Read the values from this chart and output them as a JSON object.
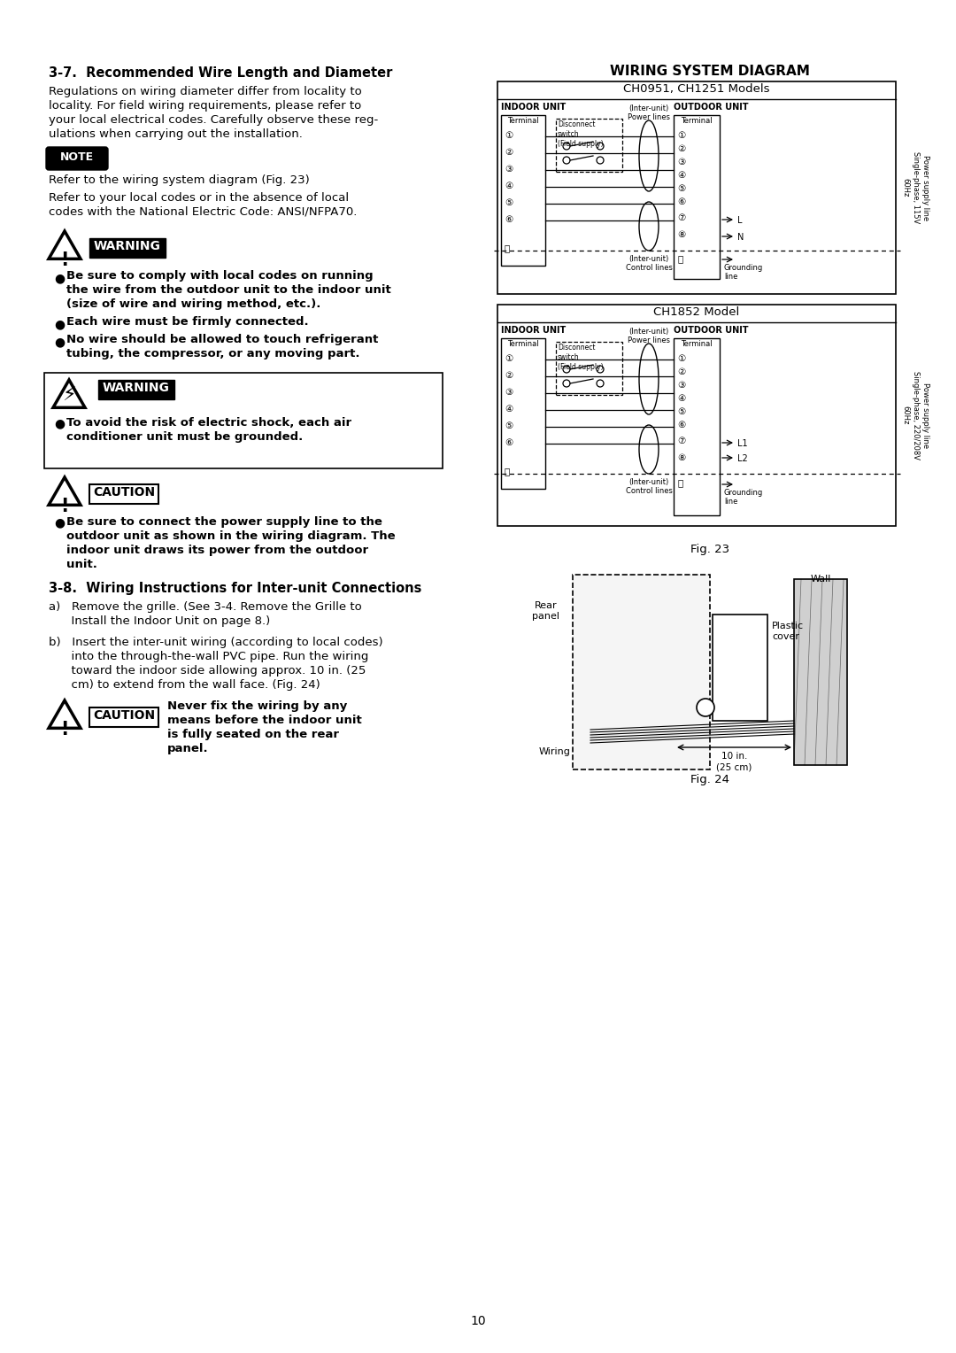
{
  "page_bg": "#ffffff",
  "page_number": "10",
  "left_col": {
    "section_title": "3-7.  Recommended Wire Length and Diameter",
    "para1_lines": [
      "Regulations on wiring diameter differ from locality to",
      "locality. For field wiring requirements, please refer to",
      "your local electrical codes. Carefully observe these reg-",
      "ulations when carrying out the installation."
    ],
    "note_label": "NOTE",
    "note1": "Refer to the wiring system diagram (Fig. 23)",
    "note2_lines": [
      "Refer to your local codes or in the absence of local",
      "codes with the National Electric Code: ANSI/NFPA70."
    ],
    "warning1_bullets": [
      "Be sure to comply with local codes on running\nthe wire from the outdoor unit to the indoor unit\n(size of wire and wiring method, etc.).",
      "Each wire must be firmly connected.",
      "No wire should be allowed to touch refrigerant\ntubing, the compressor, or any moving part."
    ],
    "warning2_text": "To avoid the risk of electric shock, each air\nconditioner unit must be grounded.",
    "caution1_text": "Be sure to connect the power supply line to the\noutdoor unit as shown in the wiring diagram. The\nindoor unit draws its power from the outdoor\nunit.",
    "section2_title": "3-8.  Wiring Instructions for Inter-unit Connections",
    "step_a_lines": [
      "a)   Remove the grille. (See 3-4. Remove the Grille to",
      "      Install the Indoor Unit on page 8.)"
    ],
    "step_b_lines": [
      "b)   Insert the inter-unit wiring (according to local codes)",
      "      into the through-the-wall PVC pipe. Run the wiring",
      "      toward the indoor side allowing approx. 10 in. (25",
      "      cm) to extend from the wall face. (Fig. 24)"
    ],
    "caution2_text": "Never fix the wiring by any\nmeans before the indoor unit\nis fully seated on the rear\npanel."
  },
  "right_col": {
    "wiring_title": "WIRING SYSTEM DIAGRAM",
    "diagram1_model": "CH0951, CH1251 Models",
    "diagram2_model": "CH1852 Model",
    "fig23_label": "Fig. 23",
    "fig24_label": "Fig. 24"
  }
}
